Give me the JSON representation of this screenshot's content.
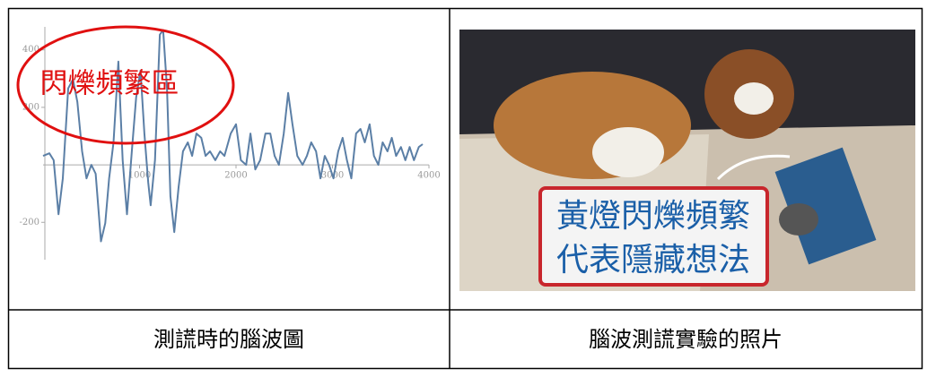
{
  "chart_data": {
    "type": "line",
    "x": [
      0,
      65,
      110,
      160,
      205,
      260,
      310,
      355,
      405,
      450,
      500,
      545,
      600,
      645,
      685,
      730,
      780,
      825,
      870,
      920,
      965,
      1010,
      1050,
      1090,
      1115,
      1160,
      1210,
      1245,
      1285,
      1320,
      1360,
      1405,
      1450,
      1500,
      1545,
      1590,
      1640,
      1685,
      1730,
      1785,
      1835,
      1880,
      1945,
      2000,
      2050,
      2105,
      2150,
      2200,
      2250,
      2305,
      2355,
      2400,
      2445,
      2495,
      2540,
      2585,
      2635,
      2690,
      2735,
      2780,
      2830,
      2875,
      2920,
      2965,
      3010,
      3060,
      3105,
      3150,
      3195,
      3245,
      3290,
      3335,
      3385,
      3430,
      3475,
      3520,
      3570,
      3615,
      3660,
      3710,
      3755,
      3800,
      3845,
      3895,
      3935
    ],
    "values": [
      31,
      40,
      16,
      -172,
      -47,
      266,
      297,
      219,
      47,
      -47,
      0,
      -31,
      -266,
      -203,
      -47,
      78,
      359,
      16,
      -172,
      47,
      234,
      328,
      109,
      -62,
      -141,
      16,
      453,
      469,
      266,
      -109,
      -234,
      -78,
      47,
      78,
      31,
      109,
      94,
      31,
      47,
      16,
      47,
      31,
      109,
      141,
      16,
      0,
      109,
      -16,
      16,
      109,
      109,
      31,
      0,
      109,
      250,
      141,
      31,
      0,
      31,
      78,
      47,
      -47,
      31,
      0,
      -47,
      47,
      94,
      16,
      -47,
      109,
      125,
      78,
      141,
      31,
      0,
      78,
      47,
      94,
      31,
      62,
      16,
      62,
      16,
      62,
      72
    ],
    "color": "#5b7fa6",
    "xlim": [
      0,
      4000
    ],
    "ylim": [
      -330,
      480
    ],
    "xticks": [
      1000,
      2000,
      3000,
      4000
    ],
    "yticks": [
      -200,
      200,
      400
    ],
    "annotation": "閃爍頻繁區"
  },
  "photo": {
    "overlay_text": [
      "黃燈閃爍頻繁",
      "代表隱藏想法"
    ]
  },
  "captions": [
    "測謊時的腦波圖",
    "腦波測謊實驗的照片"
  ]
}
